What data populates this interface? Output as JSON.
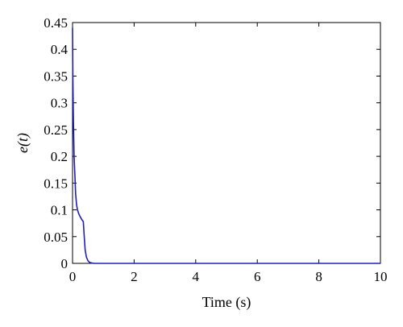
{
  "chart_data": {
    "type": "line",
    "xlabel": "Time (s)",
    "ylabel": "e(t)",
    "xlim": [
      0,
      10
    ],
    "ylim": [
      0,
      0.45
    ],
    "xticks": [
      0,
      2,
      4,
      6,
      8,
      10
    ],
    "yticks": [
      0,
      0.05,
      0.1,
      0.15,
      0.2,
      0.25,
      0.3,
      0.35,
      0.4,
      0.45
    ],
    "grid": false,
    "series": [
      {
        "color": "#1f1fbf",
        "x": [
          0,
          0.01,
          0.03,
          0.05,
          0.08,
          0.1,
          0.13,
          0.16,
          0.2,
          0.25,
          0.3,
          0.35,
          0.38,
          0.41,
          0.45,
          0.5,
          0.55,
          0.6,
          0.7,
          1.0,
          2.0,
          4.0,
          6.0,
          8.0,
          10.0
        ],
        "y": [
          0.44,
          0.35,
          0.26,
          0.2,
          0.16,
          0.13,
          0.11,
          0.1,
          0.093,
          0.087,
          0.082,
          0.078,
          0.05,
          0.025,
          0.012,
          0.005,
          0.002,
          0.001,
          0.0,
          0.0,
          0.0,
          0.0,
          0.0,
          0.0,
          0.0
        ]
      }
    ]
  }
}
